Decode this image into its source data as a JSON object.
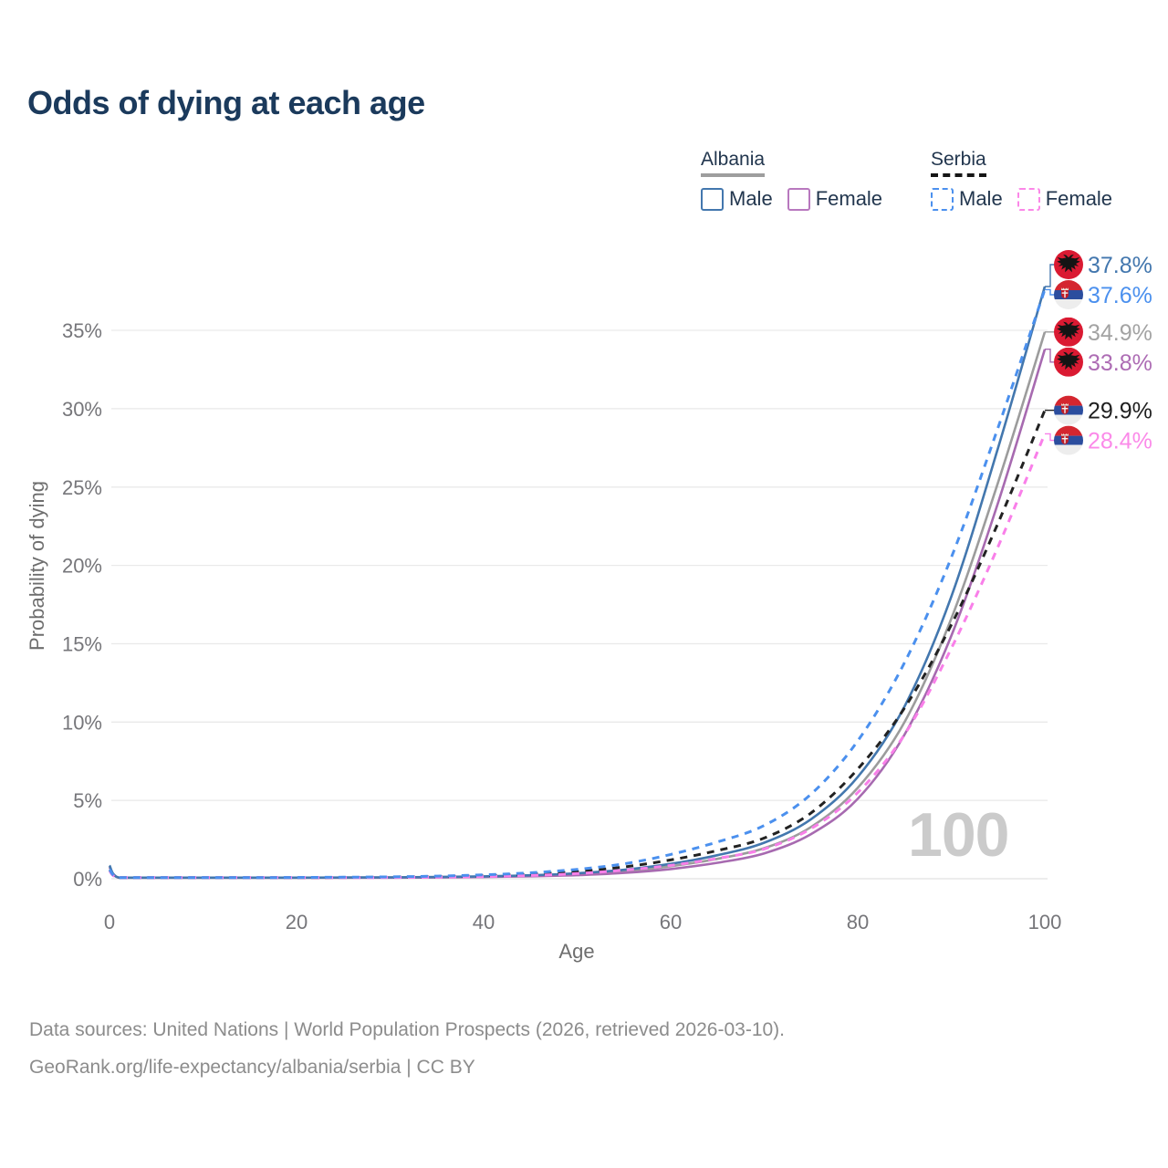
{
  "title": "Odds of dying at each age",
  "watermark": "100",
  "legend": {
    "albania": {
      "label": "Albania",
      "male": "Male",
      "female": "Female"
    },
    "serbia": {
      "label": "Serbia",
      "male": "Male",
      "female": "Female"
    }
  },
  "footer": {
    "line1": "Data sources: United Nations | World Population Prospects (2026, retrieved 2026-03-10).",
    "line2": "GeoRank.org/life-expectancy/albania/serbia | CC BY"
  },
  "colors": {
    "title": "#1b3a5c",
    "albania_male": "#4377ae",
    "albania_female": "#a76ab0",
    "albania_total": "#9c9c9c",
    "serbia_male": "#4b90ee",
    "serbia_female": "#f97fe9",
    "serbia_total": "#222222",
    "grid": "#e9e9e9"
  },
  "chart_data": {
    "type": "line",
    "title": "Odds of dying at each age",
    "xlabel": "Age",
    "ylabel": "Probability of dying",
    "xlim": [
      0,
      100
    ],
    "ylim": [
      0,
      38
    ],
    "xticks": [
      0,
      20,
      40,
      60,
      80,
      100
    ],
    "yticks": [
      0,
      5,
      10,
      15,
      20,
      25,
      30,
      35
    ],
    "ytick_suffix": "%",
    "grid": true,
    "legend_position": "top-right",
    "series": [
      {
        "name": "Albania Total",
        "country": "Albania",
        "sex": "Both",
        "style": "solid",
        "flag": "albania",
        "color": "#9c9c9c",
        "label_color": "#a3a3a3",
        "end_value": 34.9,
        "end_label": "34.9%",
        "points": [
          [
            0,
            0.8
          ],
          [
            1,
            0.05
          ],
          [
            5,
            0.02
          ],
          [
            10,
            0.02
          ],
          [
            15,
            0.04
          ],
          [
            20,
            0.06
          ],
          [
            25,
            0.07
          ],
          [
            30,
            0.08
          ],
          [
            35,
            0.1
          ],
          [
            40,
            0.13
          ],
          [
            45,
            0.19
          ],
          [
            50,
            0.29
          ],
          [
            55,
            0.47
          ],
          [
            60,
            0.8
          ],
          [
            65,
            1.27
          ],
          [
            70,
            1.95
          ],
          [
            75,
            3.3
          ],
          [
            80,
            5.8
          ],
          [
            85,
            10.0
          ],
          [
            90,
            16.6
          ],
          [
            95,
            25.3
          ],
          [
            100,
            34.9
          ]
        ]
      },
      {
        "name": "Albania Female",
        "country": "Albania",
        "sex": "Female",
        "style": "solid",
        "flag": "albania",
        "color": "#a76ab0",
        "label_color": "#ad6cb4",
        "end_value": 33.8,
        "end_label": "33.8%",
        "points": [
          [
            0,
            0.75
          ],
          [
            1,
            0.05
          ],
          [
            5,
            0.02
          ],
          [
            10,
            0.02
          ],
          [
            15,
            0.03
          ],
          [
            20,
            0.05
          ],
          [
            25,
            0.05
          ],
          [
            30,
            0.06
          ],
          [
            35,
            0.08
          ],
          [
            40,
            0.11
          ],
          [
            45,
            0.16
          ],
          [
            50,
            0.23
          ],
          [
            55,
            0.37
          ],
          [
            60,
            0.62
          ],
          [
            65,
            1.02
          ],
          [
            70,
            1.62
          ],
          [
            75,
            2.85
          ],
          [
            80,
            5.1
          ],
          [
            85,
            9.2
          ],
          [
            90,
            15.5
          ],
          [
            95,
            24.0
          ],
          [
            100,
            33.8
          ]
        ]
      },
      {
        "name": "Albania Male",
        "country": "Albania",
        "sex": "Male",
        "style": "solid",
        "flag": "albania",
        "color": "#4377ae",
        "label_color": "#4377ae",
        "end_value": 37.8,
        "end_label": "37.8%",
        "points": [
          [
            0,
            0.85
          ],
          [
            1,
            0.06
          ],
          [
            5,
            0.03
          ],
          [
            10,
            0.03
          ],
          [
            15,
            0.05
          ],
          [
            20,
            0.07
          ],
          [
            25,
            0.08
          ],
          [
            30,
            0.09
          ],
          [
            35,
            0.11
          ],
          [
            40,
            0.15
          ],
          [
            45,
            0.22
          ],
          [
            50,
            0.35
          ],
          [
            55,
            0.57
          ],
          [
            60,
            0.95
          ],
          [
            65,
            1.5
          ],
          [
            70,
            2.3
          ],
          [
            75,
            3.8
          ],
          [
            80,
            6.5
          ],
          [
            85,
            11.0
          ],
          [
            90,
            18.0
          ],
          [
            95,
            27.5
          ],
          [
            100,
            37.8
          ]
        ]
      },
      {
        "name": "Serbia Total",
        "country": "Serbia",
        "sex": "Both",
        "style": "dashed",
        "flag": "serbia",
        "color": "#222222",
        "label_color": "#1f1f1f",
        "end_value": 29.9,
        "end_label": "29.9%",
        "points": [
          [
            0,
            0.55
          ],
          [
            1,
            0.04
          ],
          [
            5,
            0.02
          ],
          [
            10,
            0.02
          ],
          [
            15,
            0.04
          ],
          [
            20,
            0.07
          ],
          [
            25,
            0.08
          ],
          [
            30,
            0.1
          ],
          [
            35,
            0.13
          ],
          [
            40,
            0.19
          ],
          [
            45,
            0.29
          ],
          [
            50,
            0.46
          ],
          [
            55,
            0.75
          ],
          [
            60,
            1.2
          ],
          [
            65,
            1.8
          ],
          [
            70,
            2.6
          ],
          [
            75,
            4.2
          ],
          [
            80,
            7.0
          ],
          [
            85,
            10.9
          ],
          [
            90,
            16.2
          ],
          [
            95,
            22.7
          ],
          [
            100,
            29.9
          ]
        ]
      },
      {
        "name": "Serbia Female",
        "country": "Serbia",
        "sex": "Female",
        "style": "dashed",
        "flag": "serbia",
        "color": "#f97fe9",
        "label_color": "#fb8ae9",
        "end_value": 28.4,
        "end_label": "28.4%",
        "points": [
          [
            0,
            0.5
          ],
          [
            1,
            0.04
          ],
          [
            5,
            0.02
          ],
          [
            10,
            0.02
          ],
          [
            15,
            0.03
          ],
          [
            20,
            0.05
          ],
          [
            25,
            0.06
          ],
          [
            30,
            0.08
          ],
          [
            35,
            0.1
          ],
          [
            40,
            0.14
          ],
          [
            45,
            0.21
          ],
          [
            50,
            0.33
          ],
          [
            55,
            0.55
          ],
          [
            60,
            0.85
          ],
          [
            65,
            1.3
          ],
          [
            70,
            1.9
          ],
          [
            75,
            3.2
          ],
          [
            80,
            5.5
          ],
          [
            85,
            9.2
          ],
          [
            90,
            14.7
          ],
          [
            95,
            21.2
          ],
          [
            100,
            28.4
          ]
        ]
      },
      {
        "name": "Serbia Male",
        "country": "Serbia",
        "sex": "Male",
        "style": "dashed",
        "flag": "serbia",
        "color": "#4b90ee",
        "label_color": "#4b90ee",
        "end_value": 37.6,
        "end_label": "37.6%",
        "points": [
          [
            0,
            0.6
          ],
          [
            1,
            0.05
          ],
          [
            5,
            0.03
          ],
          [
            10,
            0.03
          ],
          [
            15,
            0.05
          ],
          [
            20,
            0.08
          ],
          [
            25,
            0.1
          ],
          [
            30,
            0.12
          ],
          [
            35,
            0.17
          ],
          [
            40,
            0.25
          ],
          [
            45,
            0.38
          ],
          [
            50,
            0.6
          ],
          [
            55,
            0.95
          ],
          [
            60,
            1.55
          ],
          [
            65,
            2.35
          ],
          [
            70,
            3.4
          ],
          [
            75,
            5.4
          ],
          [
            80,
            8.8
          ],
          [
            85,
            13.8
          ],
          [
            90,
            20.5
          ],
          [
            95,
            28.8
          ],
          [
            100,
            37.6
          ]
        ]
      }
    ]
  }
}
